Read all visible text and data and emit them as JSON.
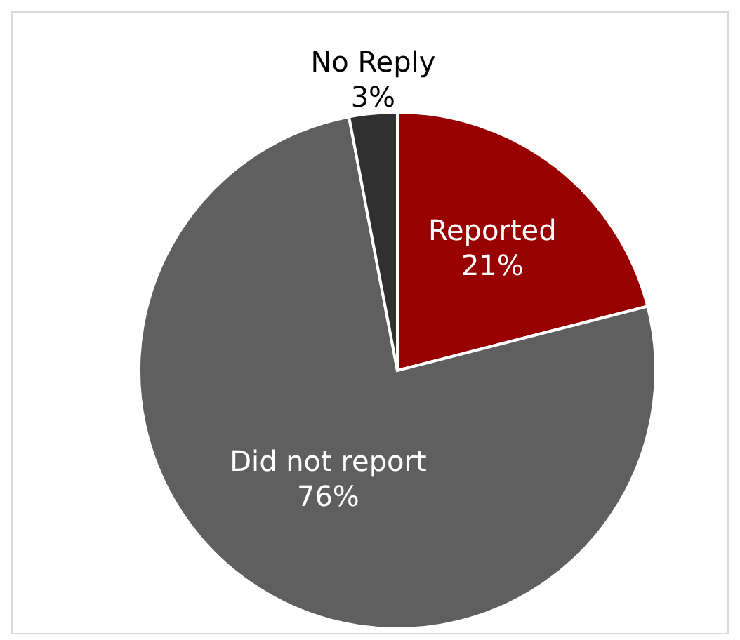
{
  "chart_data": {
    "type": "pie",
    "categories": [
      "Reported",
      "Did not report",
      "No Reply"
    ],
    "values": [
      21,
      76,
      3
    ],
    "colors": [
      "#990000",
      "#5f5f5f",
      "#303030"
    ],
    "value_labels": [
      "21%",
      "76%",
      "3%"
    ]
  }
}
